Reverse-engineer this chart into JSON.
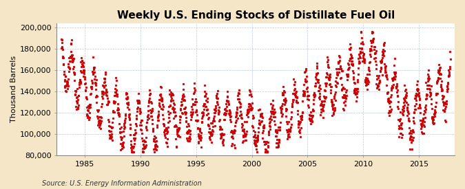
{
  "title": "Weekly U.S. Ending Stocks of Distillate Fuel Oil",
  "ylabel": "Thousand Barrels",
  "source": "Source: U.S. Energy Information Administration",
  "xlim": [
    1982.5,
    2018.2
  ],
  "ylim": [
    80000,
    204000
  ],
  "yticks": [
    80000,
    100000,
    120000,
    140000,
    160000,
    180000,
    200000
  ],
  "xticks": [
    1985,
    1990,
    1995,
    2000,
    2005,
    2010,
    2015
  ],
  "background_color": "#F5E6C8",
  "plot_bg_color": "#FFFFFF",
  "line_color": "#CC0000",
  "title_fontsize": 11,
  "label_fontsize": 8,
  "tick_fontsize": 8,
  "source_fontsize": 7
}
